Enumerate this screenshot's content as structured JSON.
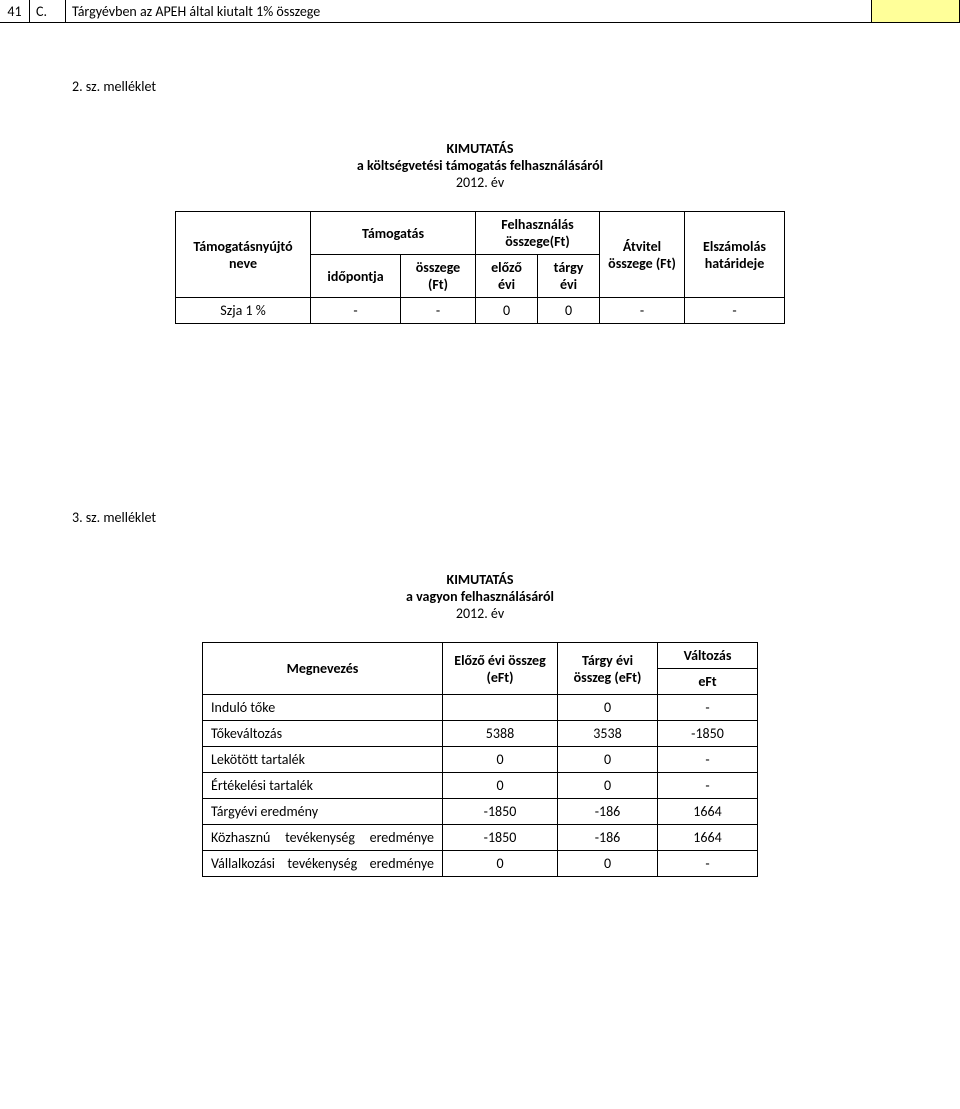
{
  "top_row": {
    "num": "41",
    "code": "C.",
    "text": "Tárgyévben az APEH által kiutalt 1% összege",
    "yellow": ""
  },
  "section1": {
    "label": "2. sz. melléklet",
    "title_line1": "KIMUTATÁS",
    "title_line2": "a költségvetési támogatás felhasználásáról",
    "title_line3": "2012. év",
    "table": {
      "headers": {
        "h1": "Támogatásnyújtó neve",
        "h2_top": "Támogatás",
        "h2a": "időpontja",
        "h2b": "összege (Ft)",
        "h3_top": "Felhasználás összege(Ft)",
        "h3a": "előző évi",
        "h3b": "tárgy évi",
        "h4": "Átvitel összege (Ft)",
        "h5": "Elszámolás határideje"
      },
      "row": {
        "c1": "Szja 1 %",
        "c2": "-",
        "c3": "-",
        "c4": "0",
        "c5": "0",
        "c6": "-",
        "c7": "-"
      }
    }
  },
  "section2": {
    "label": "3. sz. melléklet",
    "title_line1": "KIMUTATÁS",
    "title_line2": "a vagyon felhasználásáról",
    "title_line3": "2012. év",
    "table": {
      "headers": {
        "h1": "Megnevezés",
        "h2": "Előző évi összeg (eFt)",
        "h3": "Tárgy évi összeg (eFt)",
        "h4_top": "Változás",
        "h4_sub": "eFt"
      },
      "rows": [
        {
          "c1": "Induló tőke",
          "c2": "",
          "c3": "0",
          "c4": "-"
        },
        {
          "c1": "Tőkeváltozás",
          "c2": "5388",
          "c3": "3538",
          "c4": "-1850"
        },
        {
          "c1": "Lekötött tartalék",
          "c2": "0",
          "c3": "0",
          "c4": "-"
        },
        {
          "c1": "Értékelési tartalék",
          "c2": "0",
          "c3": "0",
          "c4": "-"
        },
        {
          "c1": "Tárgyévi eredmény",
          "c2": "-1850",
          "c3": "-186",
          "c4": "1664"
        },
        {
          "c1": "Közhasznú tevékenység eredménye",
          "c2": "-1850",
          "c3": "-186",
          "c4": "1664",
          "justify": true
        },
        {
          "c1": "Vállalkozási tevékenység eredménye",
          "c2": "0",
          "c3": "0",
          "c4": "-",
          "justify": true
        }
      ]
    }
  }
}
